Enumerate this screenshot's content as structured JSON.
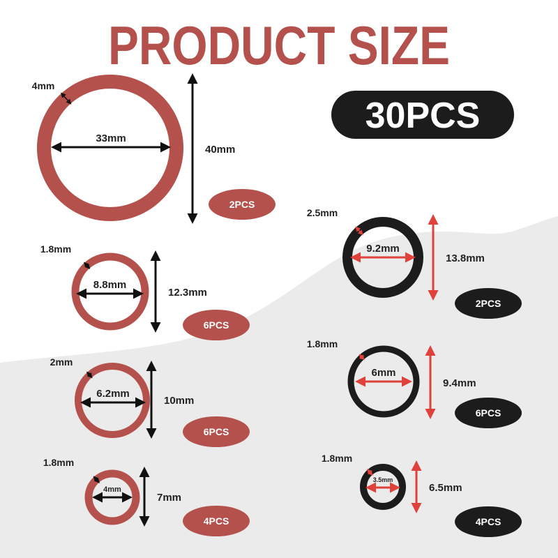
{
  "title": "PRODUCT SIZE",
  "total_badge": "30PCS",
  "colors": {
    "red": "#b5514c",
    "black": "#1c1c1c",
    "background_wave": "#ebebeb",
    "arrow_red": "#e0413a"
  },
  "rings": [
    {
      "color": "red",
      "thickness": "4mm",
      "inner_diameter": "33mm",
      "outer_diameter": "40mm",
      "quantity": "2PCS"
    },
    {
      "color": "red",
      "thickness": "1.8mm",
      "inner_diameter": "8.8mm",
      "outer_diameter": "12.3mm",
      "quantity": "6PCS"
    },
    {
      "color": "red",
      "thickness": "2mm",
      "inner_diameter": "6.2mm",
      "outer_diameter": "10mm",
      "quantity": "6PCS"
    },
    {
      "color": "red",
      "thickness": "1.8mm",
      "inner_diameter": "4mm",
      "outer_diameter": "7mm",
      "quantity": "4PCS"
    },
    {
      "color": "black",
      "thickness": "2.5mm",
      "inner_diameter": "9.2mm",
      "outer_diameter": "13.8mm",
      "quantity": "2PCS"
    },
    {
      "color": "black",
      "thickness": "1.8mm",
      "inner_diameter": "6mm",
      "outer_diameter": "9.4mm",
      "quantity": "6PCS"
    },
    {
      "color": "black",
      "thickness": "1.8mm",
      "inner_diameter": "3.5mm",
      "outer_diameter": "6.5mm",
      "quantity": "4PCS"
    }
  ]
}
